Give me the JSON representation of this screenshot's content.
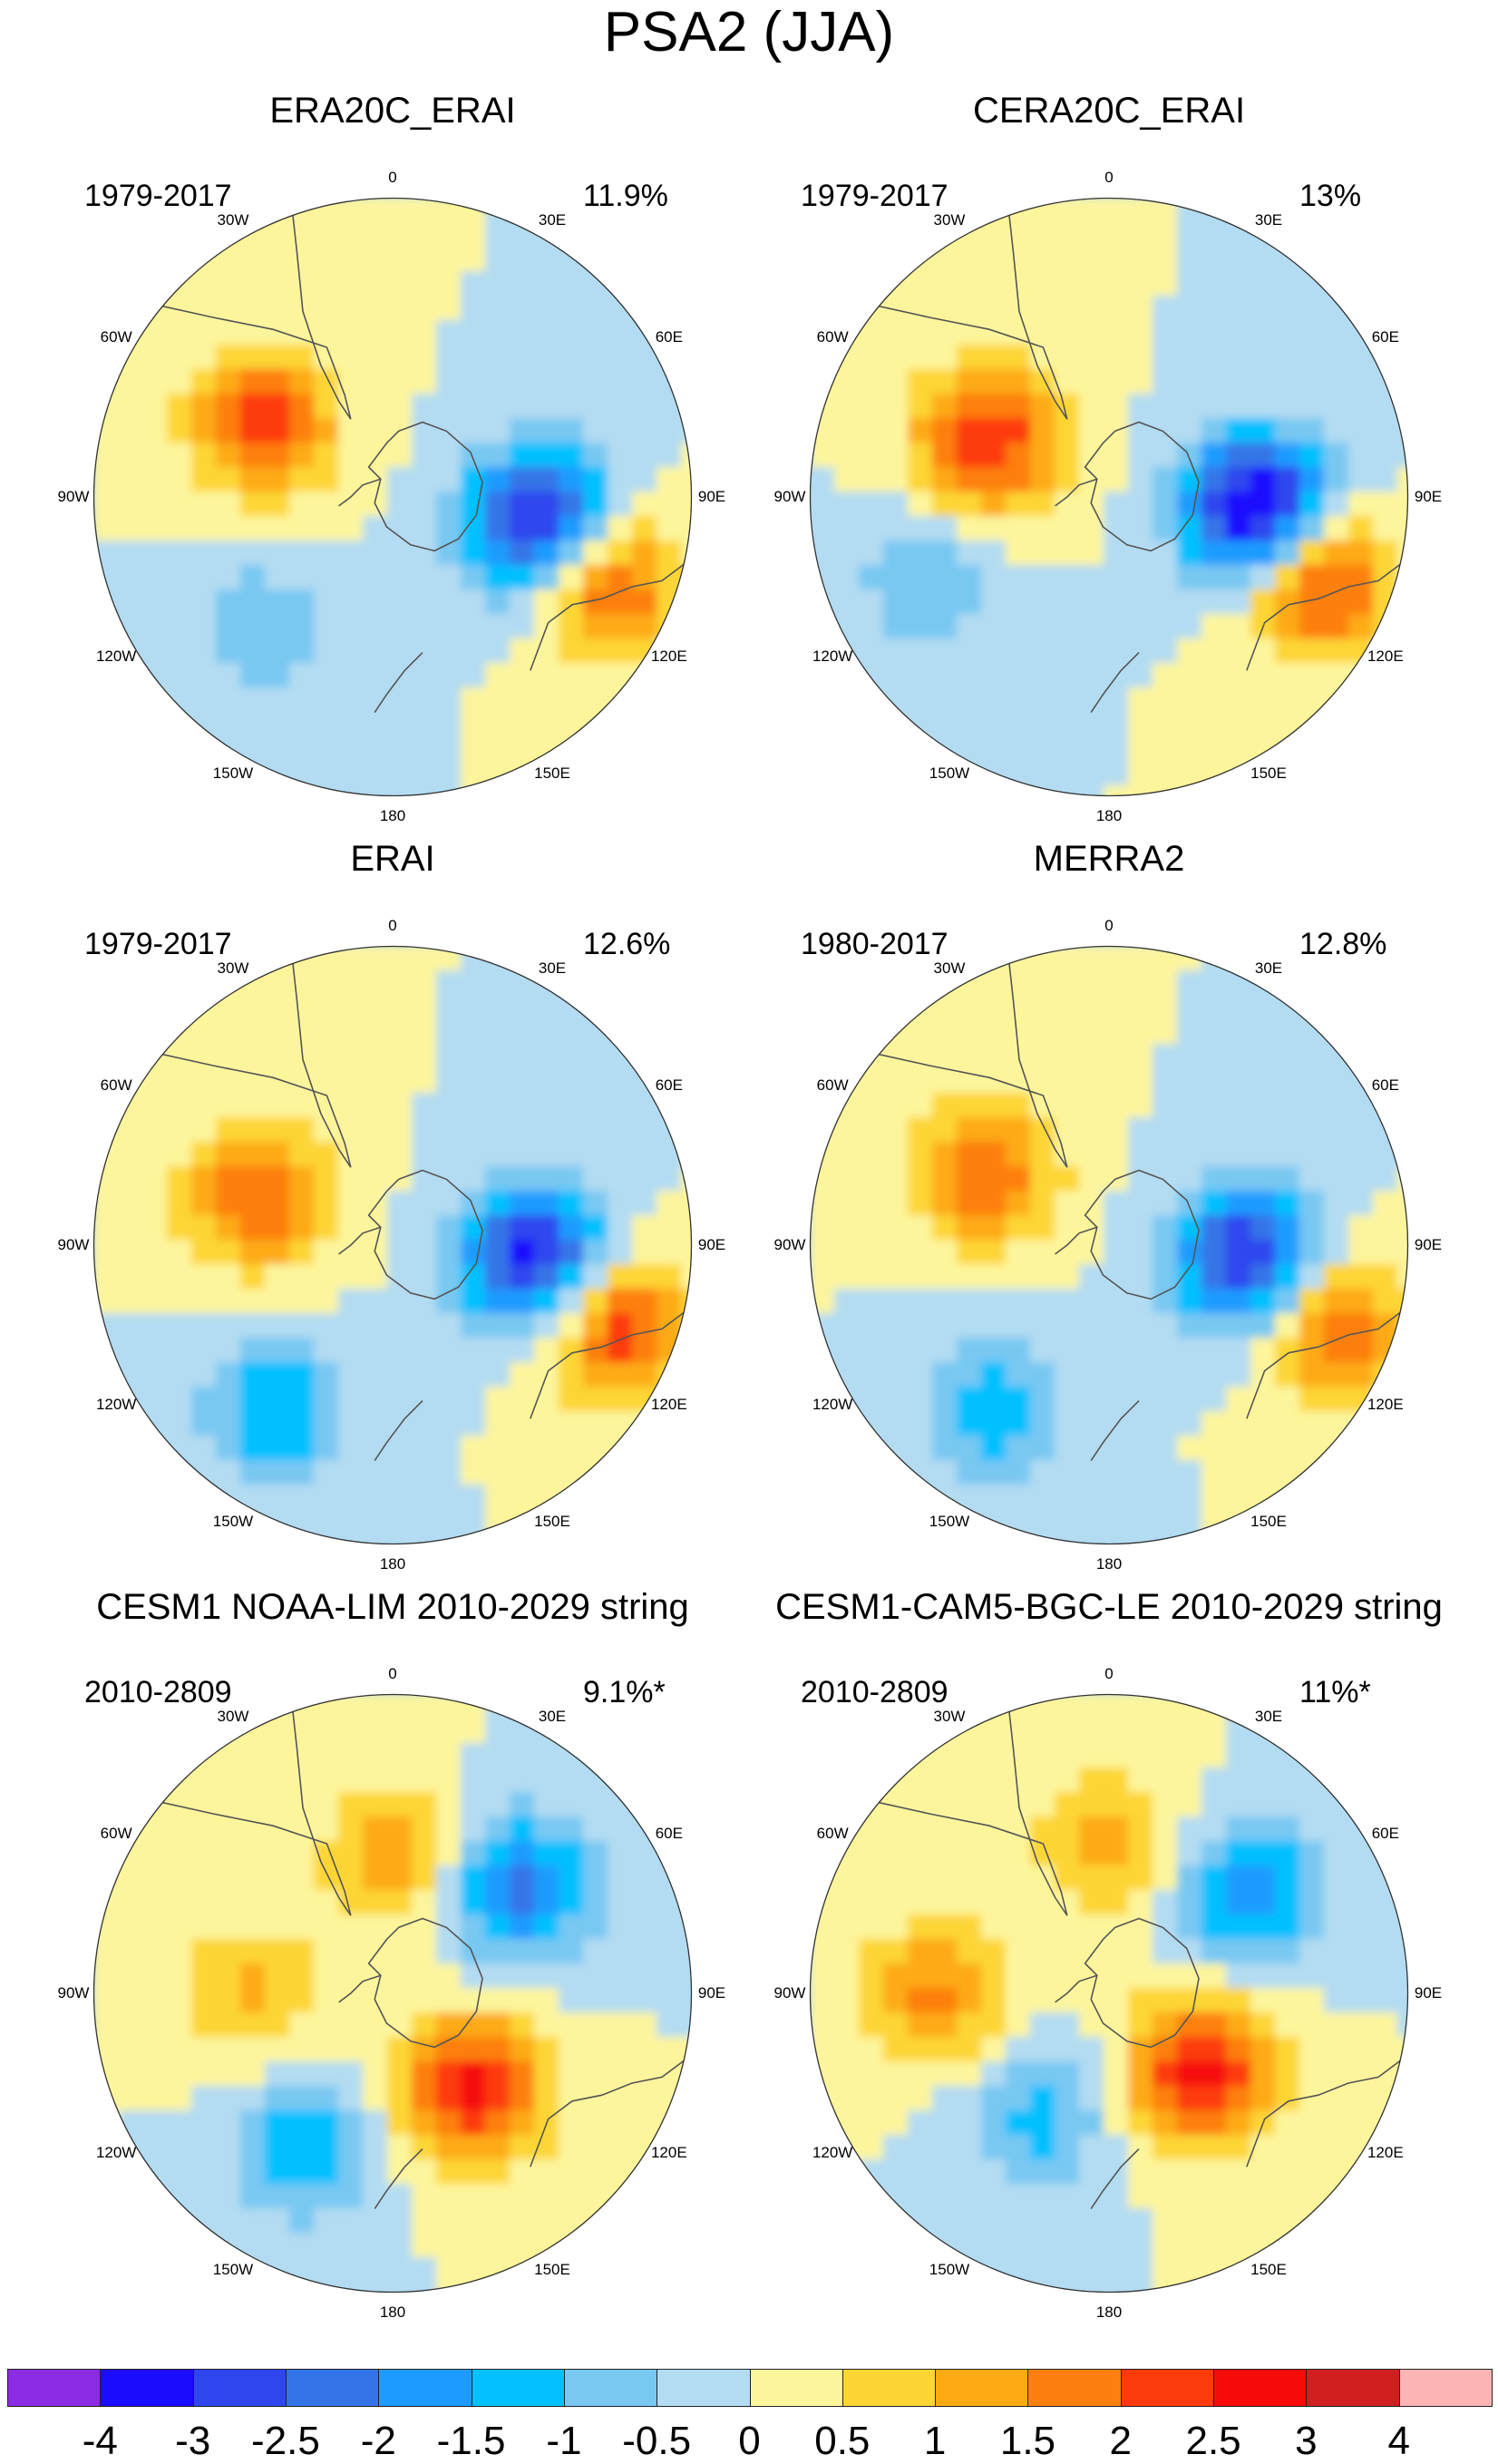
{
  "chart_data": {
    "type": "heatmap",
    "title": "PSA2 (JJA)",
    "projection": "south-polar-stereographic",
    "longitude_labels": [
      "0",
      "30E",
      "60E",
      "90E",
      "120E",
      "150E",
      "180",
      "150W",
      "120W",
      "90W",
      "60W",
      "30W"
    ],
    "panels": [
      {
        "name": "ERA20C_ERAI",
        "period": "1979-2017",
        "explained_variance": "11.9%",
        "features": [
          {
            "lon": 100,
            "r": 0.5,
            "peak": -3.5
          },
          {
            "lon": 112,
            "r": 0.77,
            "peak": 2.3
          },
          {
            "lon": 300,
            "r": 0.5,
            "peak": 2.2
          },
          {
            "lon": 225,
            "r": 0.62,
            "peak": -0.9
          }
        ]
      },
      {
        "name": "CERA20C_ERAI",
        "period": "1979-2017",
        "explained_variance": "13%",
        "features": [
          {
            "lon": 95,
            "r": 0.5,
            "peak": -4.0
          },
          {
            "lon": 112,
            "r": 0.75,
            "peak": 2.6
          },
          {
            "lon": 295,
            "r": 0.45,
            "peak": 2.5
          },
          {
            "lon": 245,
            "r": 0.68,
            "peak": -0.9
          }
        ]
      },
      {
        "name": "ERAI",
        "period": "1979-2017",
        "explained_variance": "12.6%",
        "features": [
          {
            "lon": 95,
            "r": 0.48,
            "peak": -3.3
          },
          {
            "lon": 110,
            "r": 0.8,
            "peak": 2.4
          },
          {
            "lon": 290,
            "r": 0.48,
            "peak": 2.0
          },
          {
            "lon": 215,
            "r": 0.68,
            "peak": -1.5
          }
        ]
      },
      {
        "name": "MERRA2",
        "period": "1980-2017",
        "explained_variance": "12.8%",
        "features": [
          {
            "lon": 95,
            "r": 0.47,
            "peak": -3.2
          },
          {
            "lon": 110,
            "r": 0.8,
            "peak": 2.0
          },
          {
            "lon": 300,
            "r": 0.48,
            "peak": 1.9
          },
          {
            "lon": 215,
            "r": 0.68,
            "peak": -1.4
          }
        ]
      },
      {
        "name": "CESM1 NOAA-LIM 2010-2029 string",
        "period": "2010-2809",
        "explained_variance": "9.1%*",
        "features": [
          {
            "lon": 50,
            "r": 0.55,
            "peak": -2.2
          },
          {
            "lon": 140,
            "r": 0.42,
            "peak": 2.7
          },
          {
            "lon": 0,
            "r": 0.45,
            "peak": 1.3
          },
          {
            "lon": 270,
            "r": 0.48,
            "peak": 1.1
          },
          {
            "lon": 210,
            "r": 0.6,
            "peak": -1.4
          }
        ]
      },
      {
        "name": "CESM1-CAM5-BGC-LE 2010-2029 string",
        "period": "2010-2809",
        "explained_variance": "11%*",
        "features": [
          {
            "lon": 55,
            "r": 0.58,
            "peak": -1.8
          },
          {
            "lon": 130,
            "r": 0.4,
            "peak": 2.8
          },
          {
            "lon": 0,
            "r": 0.5,
            "peak": 1.3
          },
          {
            "lon": 270,
            "r": 0.58,
            "peak": 1.6
          },
          {
            "lon": 210,
            "r": 0.48,
            "peak": -1.2
          }
        ]
      }
    ],
    "colorbar": {
      "labels": [
        "-4",
        "-3",
        "-2.5",
        "-2",
        "-1.5",
        "-1",
        "-0.5",
        "0",
        "0.5",
        "1",
        "1.5",
        "2",
        "2.5",
        "3",
        "4"
      ],
      "levels": [
        -4,
        -3,
        -2.5,
        -2,
        -1.5,
        -1,
        -0.5,
        0,
        0.5,
        1,
        1.5,
        2,
        2.5,
        3,
        4
      ],
      "colors": [
        "#8b2be2",
        "#1a0dff",
        "#2f46ee",
        "#3474e8",
        "#1e9bff",
        "#04c0ff",
        "#78c8f2",
        "#b3dcf2",
        "#fdf59c",
        "#fdd535",
        "#fdaa12",
        "#fd7f0f",
        "#fd3a0a",
        "#f60a0a",
        "#d11f1f",
        "#fdb4b4"
      ]
    }
  }
}
